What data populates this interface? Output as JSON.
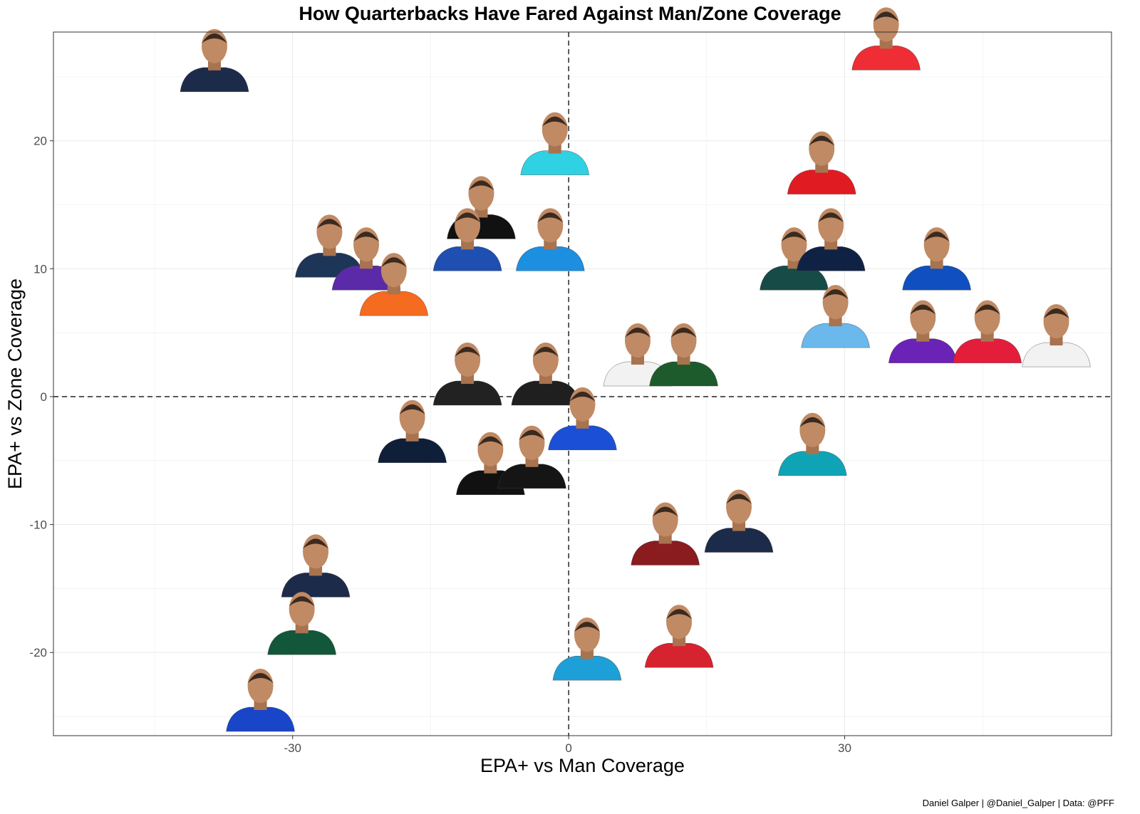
{
  "chart_data": {
    "type": "scatter",
    "title": "How Quarterbacks Have Fared Against Man/Zone Coverage",
    "xlabel": "EPA+ vs Man Coverage",
    "ylabel": "EPA+ vs Zone Coverage",
    "xlim": [
      -56,
      59
    ],
    "ylim": [
      -26.5,
      28.5
    ],
    "x_ticks": [
      -30,
      0,
      30
    ],
    "y_ticks": [
      -20,
      -10,
      0,
      10,
      20
    ],
    "x_tick_labels": [
      "-30",
      "0",
      "30"
    ],
    "y_tick_labels": [
      "-20",
      "-10",
      "0",
      "10",
      "20"
    ],
    "reference_lines": {
      "x": 0,
      "y": 0,
      "style": "dashed"
    },
    "grid": true,
    "point_style": "player headshots (jersey color)",
    "points": [
      {
        "x": -38.5,
        "y": 24.5,
        "color": "#1d2b4a"
      },
      {
        "x": 34.5,
        "y": 26.2,
        "color": "#ee2d35"
      },
      {
        "x": -1.5,
        "y": 18.0,
        "color": "#2fd1e2"
      },
      {
        "x": 27.5,
        "y": 16.5,
        "color": "#e11b22"
      },
      {
        "x": -9.5,
        "y": 13.0,
        "color": "#111111"
      },
      {
        "x": -11.0,
        "y": 10.5,
        "color": "#1f4fb0"
      },
      {
        "x": -2.0,
        "y": 10.5,
        "color": "#1d8fe0"
      },
      {
        "x": -26.0,
        "y": 10.0,
        "color": "#1d3557"
      },
      {
        "x": -22.0,
        "y": 9.0,
        "color": "#5b2aa8"
      },
      {
        "x": -19.0,
        "y": 7.0,
        "color": "#f56b1f"
      },
      {
        "x": 24.5,
        "y": 9.0,
        "color": "#174b48"
      },
      {
        "x": 28.5,
        "y": 10.5,
        "color": "#0f2244"
      },
      {
        "x": 40.0,
        "y": 9.0,
        "color": "#0f4fc0"
      },
      {
        "x": 29.0,
        "y": 4.5,
        "color": "#6ab8ec"
      },
      {
        "x": 38.5,
        "y": 3.3,
        "color": "#6a23b6"
      },
      {
        "x": 45.5,
        "y": 3.3,
        "color": "#e41d3a"
      },
      {
        "x": 53.0,
        "y": 3.0,
        "color": "#f2f2f2"
      },
      {
        "x": 7.5,
        "y": 1.5,
        "color": "#f2f2f2"
      },
      {
        "x": 12.5,
        "y": 1.5,
        "color": "#1e5b2c"
      },
      {
        "x": -11.0,
        "y": 0.0,
        "color": "#222222"
      },
      {
        "x": -2.5,
        "y": 0.0,
        "color": "#1f1f1f"
      },
      {
        "x": -17.0,
        "y": -4.5,
        "color": "#0f1f3a"
      },
      {
        "x": 1.5,
        "y": -3.5,
        "color": "#1a4fd6"
      },
      {
        "x": 26.5,
        "y": -5.5,
        "color": "#0fa4b5"
      },
      {
        "x": -8.5,
        "y": -7.0,
        "color": "#111111"
      },
      {
        "x": -4.0,
        "y": -6.5,
        "color": "#151515"
      },
      {
        "x": 10.5,
        "y": -12.5,
        "color": "#8a1b1f"
      },
      {
        "x": 18.5,
        "y": -11.5,
        "color": "#1d2b4a"
      },
      {
        "x": -27.5,
        "y": -15.0,
        "color": "#1d2b4a"
      },
      {
        "x": -29.0,
        "y": -19.5,
        "color": "#12573a"
      },
      {
        "x": -33.5,
        "y": -25.5,
        "color": "#1946c8"
      },
      {
        "x": 2.0,
        "y": -21.5,
        "color": "#1da0d8"
      },
      {
        "x": 12.0,
        "y": -20.5,
        "color": "#d62330"
      }
    ]
  },
  "caption": "Daniel Galper | @Daniel_Galper | Data: @PFF"
}
